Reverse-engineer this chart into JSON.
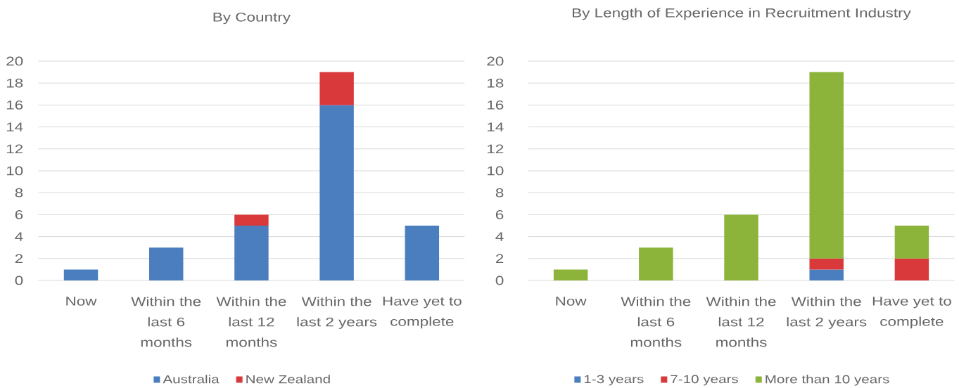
{
  "chart_data": [
    {
      "type": "bar",
      "title": "By Country",
      "categories": [
        "Now",
        "Within the last 6 months",
        "Within the last 12 months",
        "Within the last 2 years",
        "Have yet to complete"
      ],
      "stacked": true,
      "series": [
        {
          "name": "Australia",
          "color": "#4a7ebf",
          "values": [
            1,
            3,
            5,
            16,
            5
          ]
        },
        {
          "name": "New Zealand",
          "color": "#d9393b",
          "values": [
            0,
            0,
            1,
            3,
            0
          ]
        }
      ],
      "ylim": [
        0,
        20
      ],
      "yticks": [
        0,
        2,
        4,
        6,
        8,
        10,
        12,
        14,
        16,
        18,
        20
      ],
      "grid": "y",
      "legend": "bottom"
    },
    {
      "type": "bar",
      "title": "By Length of Experience in Recruitment Industry",
      "categories": [
        "Now",
        "Within the last 6 months",
        "Within the last 12 months",
        "Within the last 2 years",
        "Have yet to complete"
      ],
      "stacked": true,
      "series": [
        {
          "name": "1-3 years",
          "color": "#4a7ebf",
          "values": [
            0,
            0,
            0,
            1,
            0
          ]
        },
        {
          "name": "7-10 years",
          "color": "#d9393b",
          "values": [
            0,
            0,
            0,
            1,
            2
          ]
        },
        {
          "name": "More than 10 years",
          "color": "#8cb43a",
          "values": [
            1,
            3,
            6,
            17,
            3
          ]
        }
      ],
      "ylim": [
        0,
        20
      ],
      "yticks": [
        0,
        2,
        4,
        6,
        8,
        10,
        12,
        14,
        16,
        18,
        20
      ],
      "grid": "y",
      "legend": "bottom"
    }
  ]
}
